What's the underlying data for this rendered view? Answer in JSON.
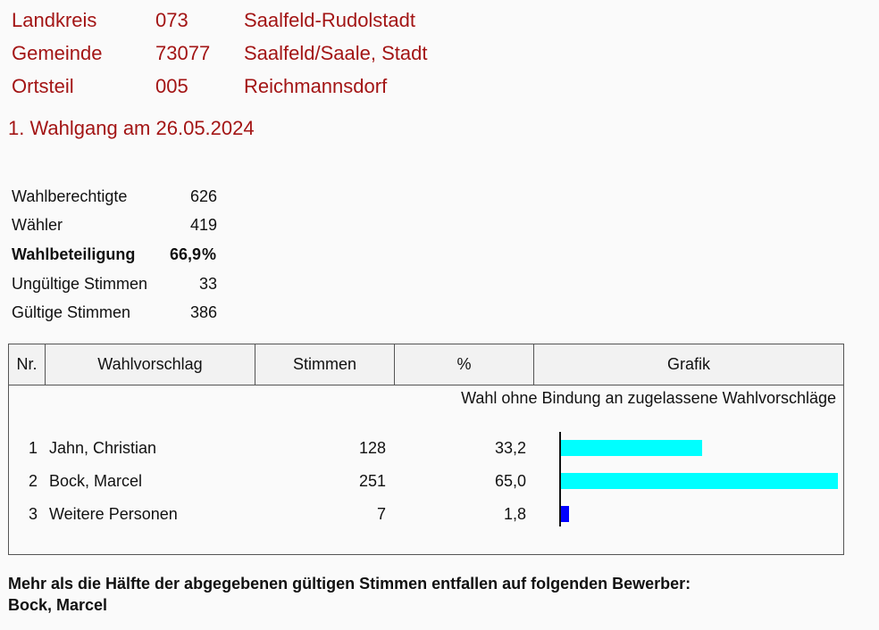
{
  "header": {
    "landkreis": {
      "label": "Landkreis",
      "code": "073",
      "name": "Saalfeld-Rudolstadt"
    },
    "gemeinde": {
      "label": "Gemeinde",
      "code": "73077",
      "name": "Saalfeld/Saale, Stadt"
    },
    "ortsteil": {
      "label": "Ortsteil",
      "code": "005",
      "name": "Reichmannsdorf"
    },
    "wahlgang": "1. Wahlgang am 26.05.2024"
  },
  "stats": {
    "wahlberechtigte": {
      "label": "Wahlberechtigte",
      "value": "626"
    },
    "waehler": {
      "label": "Wähler",
      "value": "419"
    },
    "wahlbeteiligung": {
      "label": "Wahlbeteiligung",
      "value": "66,9",
      "unit": "%"
    },
    "ungueltige": {
      "label": "Ungültige Stimmen",
      "value": "33"
    },
    "gueltige": {
      "label": "Gültige Stimmen",
      "value": "386"
    }
  },
  "table": {
    "headers": [
      "Nr.",
      "Wahlvorschlag",
      "Stimmen",
      "%",
      "Grafik"
    ],
    "note": "Wahl ohne Bindung an zugelassene Wahlvorschläge",
    "rows": [
      {
        "nr": "1",
        "name": "Jahn, Christian",
        "stimmen": "128",
        "prozent": "33,2",
        "pct_value": 33.2,
        "color": "#00ffff"
      },
      {
        "nr": "2",
        "name": "Bock, Marcel",
        "stimmen": "251",
        "prozent": "65,0",
        "pct_value": 65.0,
        "color": "#00ffff"
      },
      {
        "nr": "3",
        "name": "Weitere Personen",
        "stimmen": "7",
        "prozent": "1,8",
        "pct_value": 1.8,
        "color": "#0000ff"
      }
    ]
  },
  "footer": {
    "text": "Mehr als die Hälfte der abgegebenen gültigen Stimmen entfallen auf folgenden Bewerber:",
    "winner": "Bock, Marcel"
  },
  "colors": {
    "header_red": "#a31515",
    "bar_cyan": "#00ffff",
    "bar_blue": "#0000ff"
  }
}
